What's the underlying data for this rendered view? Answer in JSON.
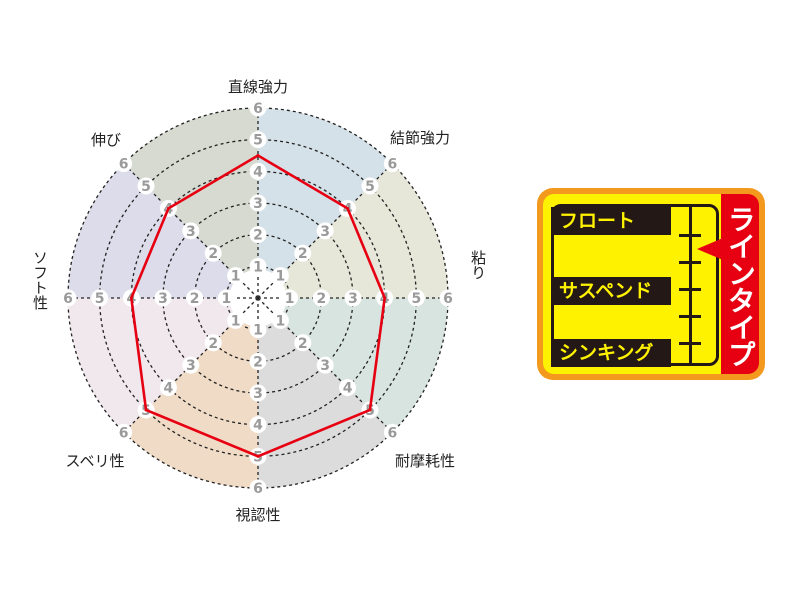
{
  "chart_data": {
    "type": "radar",
    "axes": [
      "直線強力",
      "結節強力",
      "粘り",
      "耐摩耗性",
      "視認性",
      "スベリ性",
      "ソフト性",
      "伸び"
    ],
    "values": [
      4.5,
      4,
      4,
      5,
      5,
      5,
      4,
      4
    ],
    "rlim": [
      0,
      6
    ],
    "ticks": [
      1,
      2,
      3,
      4,
      5,
      6
    ],
    "grid": "dashed circles",
    "line_color": "#e60012",
    "sector_colors": [
      "#d5e1e8",
      "#e6e6d9",
      "#d8e4df",
      "#dcdcdc",
      "#f0dcc6",
      "#f1e8ee",
      "#dcdcea",
      "#d6dad0"
    ]
  },
  "line_type_badge": {
    "title": "ラインタイプ",
    "types": [
      "フロート",
      "サスペンド",
      "シンキング"
    ],
    "scale_ticks": 5,
    "indicator_tick": 0.5,
    "colors": {
      "background": "#fff200",
      "border": "#f39a1e",
      "accent": "#e60012",
      "dark": "#231815"
    }
  }
}
